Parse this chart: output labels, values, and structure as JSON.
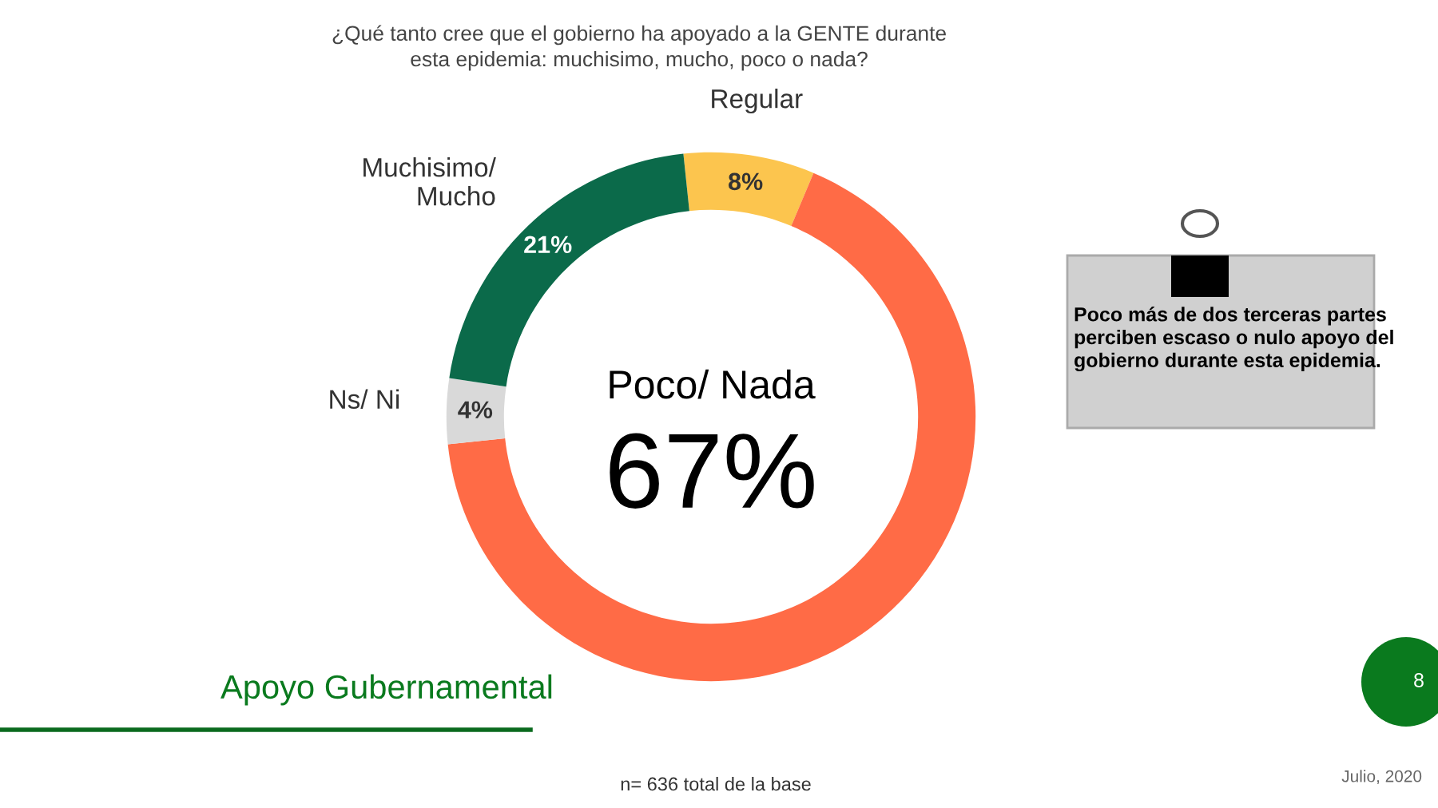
{
  "chart_data": {
    "type": "donut",
    "title": "¿Qué tanto cree que el gobierno ha apoyado a la GENTE durante\nesta epidemia: muchisimo, mucho, poco o nada?",
    "categories": [
      "Regular",
      "Poco/ Nada",
      "Ns/ Ni",
      "Muchisimo/\nMucho"
    ],
    "values": [
      8,
      67,
      4,
      21
    ],
    "colors": [
      "#fcc54e",
      "#ff6b46",
      "#d9d9d9",
      "#0b6a4a"
    ],
    "value_labels": [
      "8%",
      "67%",
      "4%",
      "21%"
    ],
    "annotations": [
      "Poco más de dos terceras partes perciben escaso o nulo apoyo del gobierno durante esta epidemia.",
      "Apoyo Gubernamental",
      "8",
      "n= 636 total de la base",
      "Julio, 2020"
    ]
  }
}
